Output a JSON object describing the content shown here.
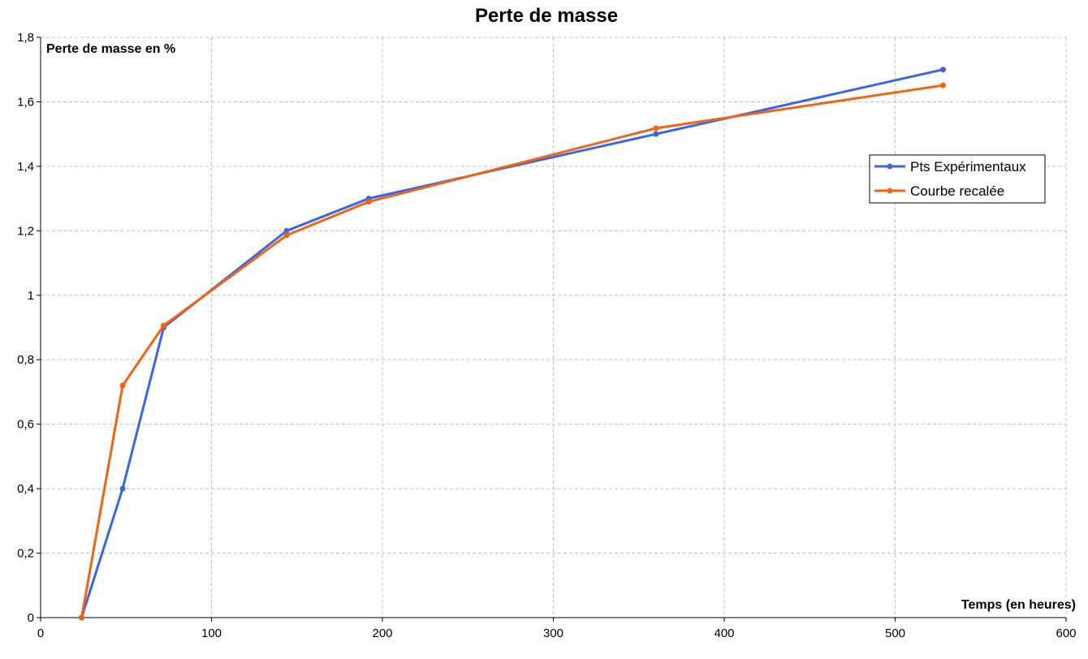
{
  "chart_data": {
    "type": "line",
    "title": "Perte de masse",
    "xlabel": "Temps (en heures)",
    "ylabel": "Perte de masse en %",
    "xlim": [
      0,
      600
    ],
    "ylim": [
      0,
      1.8
    ],
    "xticks": [
      0,
      100,
      200,
      300,
      400,
      500,
      600
    ],
    "xtick_labels": [
      "0",
      "100",
      "200",
      "300",
      "400",
      "500",
      "600"
    ],
    "yticks": [
      0,
      0.2,
      0.4,
      0.6,
      0.8,
      1,
      1.2,
      1.4,
      1.6,
      1.8
    ],
    "ytick_labels": [
      "0",
      "0,2",
      "0,4",
      "0,6",
      "0,8",
      "1",
      "1,2",
      "1,4",
      "1,6",
      "1,8"
    ],
    "grid": true,
    "legend_placement": "right",
    "x": [
      24,
      48,
      72,
      144,
      192,
      360,
      528
    ],
    "series": [
      {
        "name": "Pts Expérimentaux",
        "color": "#3c64e6",
        "values": [
          0,
          0.4,
          0.9,
          1.2,
          1.3,
          1.5,
          1.7
        ]
      },
      {
        "name": "Courbe recalée",
        "color": "#f06414",
        "values": [
          0,
          0.72,
          0.906,
          1.186,
          1.29,
          1.518,
          1.651
        ]
      }
    ]
  }
}
